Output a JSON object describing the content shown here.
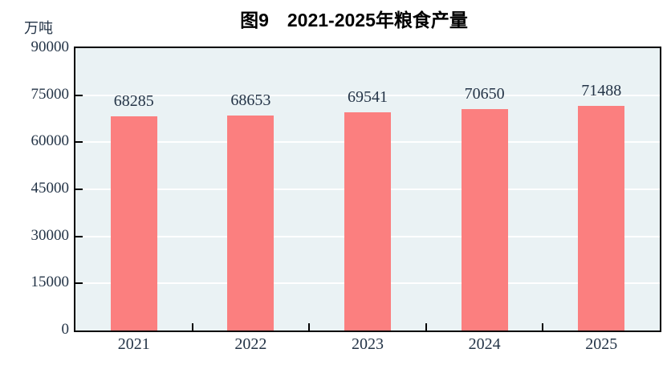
{
  "chart": {
    "title": "图9　2021-2025年粮食产量",
    "unit_label": "万吨"
  },
  "chart_data": {
    "type": "bar",
    "title": "图9　2021-2025年粮食产量",
    "categories": [
      "2021",
      "2022",
      "2023",
      "2024",
      "2025"
    ],
    "values": [
      68285,
      68653,
      69541,
      70650,
      71488
    ],
    "xlabel": "",
    "ylabel": "万吨",
    "ylim": [
      0,
      90000
    ],
    "yticks": [
      0,
      15000,
      30000,
      45000,
      60000,
      75000,
      90000
    ],
    "legend": "none",
    "grid": true,
    "colors": {
      "bar_fill": "#fb7f7f",
      "plot_background": "#eaf2f4",
      "gridline": "#ffffff",
      "axis_border": "#000000",
      "tick_text": "#243447",
      "title_text": "#000000"
    }
  }
}
